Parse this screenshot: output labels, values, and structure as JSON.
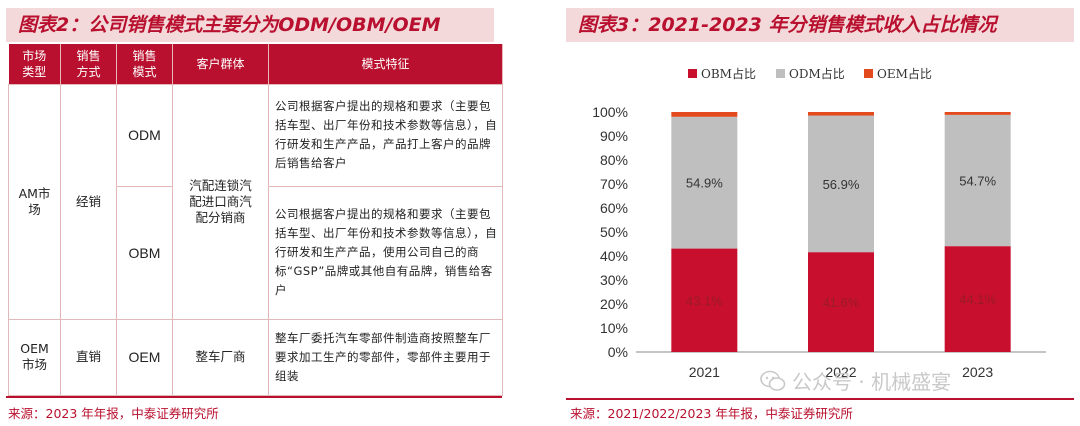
{
  "left_panel": {
    "title": "图表2：公司销售模式主要分为ODM/OBM/OEM",
    "source": "来源：2023 年年报，中泰证券研究所",
    "table": {
      "headers": [
        "市场\n类型",
        "销售\n方式",
        "销售\n模式",
        "客户群体",
        "模式特征"
      ],
      "am_market": "AM市\n场",
      "am_sales": "经销",
      "am_customers": "汽配连锁汽\n配进口商汽\n配分销商",
      "oem_market": "OEM\n市场",
      "oem_sales": "直销",
      "oem_customers": "整车厂商",
      "rows": [
        {
          "mode": "ODM",
          "feature": "公司根据客户提出的规格和要求（主要包括车型、出厂年份和技术参数等信息），自行研发和生产产品，产品打上客户的品牌后销售给客户"
        },
        {
          "mode": "OBM",
          "feature": "公司根据客户提出的规格和要求（主要包括车型、出厂年份和技术参数等信息），自行研发和生产产品，使用公司自己的商标“GSP”品牌或其他自有品牌，销售给客户"
        },
        {
          "mode": "OEM",
          "feature": "整车厂委托汽车零部件制造商按照整车厂要求加工生产的零部件，零部件主要用于组装"
        }
      ]
    }
  },
  "right_panel": {
    "title": "图表3：2021-2023 年分销售模式收入占比情况",
    "source": "来源：2021/2022/2023 年年报，中泰证券研究所",
    "watermark": "公众号 · 机械盛宴"
  },
  "colors": {
    "accent": "#b8102e",
    "obm": "#c8102e",
    "odm": "#bfbfbf",
    "oem": "#e34a1e"
  },
  "chart_data": {
    "type": "bar",
    "stacked": true,
    "categories": [
      "2021",
      "2022",
      "2023"
    ],
    "series": [
      {
        "name": "OBM占比",
        "values": [
          43.1,
          41.6,
          44.1
        ],
        "labels": [
          "43.1%",
          "41.6%",
          "44.1%"
        ]
      },
      {
        "name": "ODM占比",
        "values": [
          54.9,
          56.9,
          54.7
        ],
        "labels": [
          "54.9%",
          "56.9%",
          "54.7%"
        ]
      },
      {
        "name": "OEM占比",
        "values": [
          2.0,
          1.5,
          1.2
        ]
      }
    ],
    "ylim": [
      0,
      100
    ],
    "yticks": [
      "0%",
      "10%",
      "20%",
      "30%",
      "40%",
      "50%",
      "60%",
      "70%",
      "80%",
      "90%",
      "100%"
    ],
    "legend": "top-left"
  }
}
